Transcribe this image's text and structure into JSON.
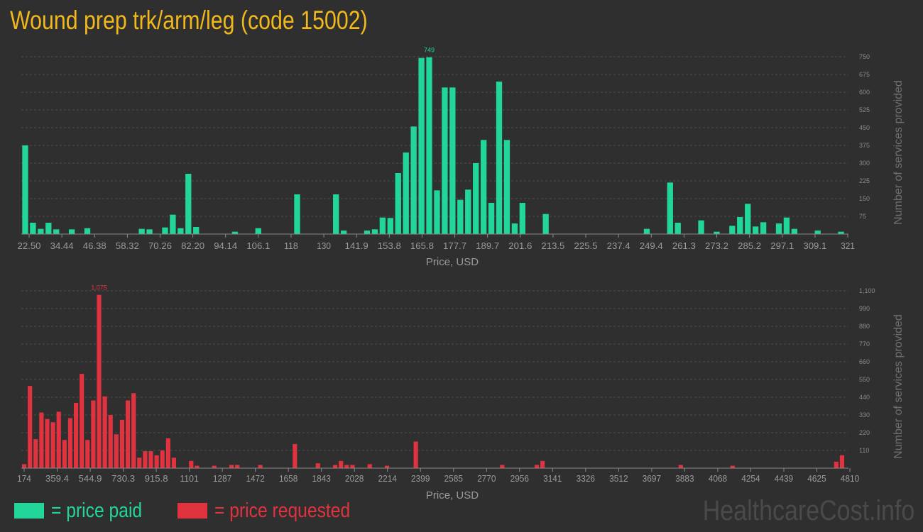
{
  "title": "Wound prep trk/arm/leg (code 15002)",
  "legend": {
    "paid": {
      "label": "= price paid",
      "color": "#22d69b"
    },
    "requested": {
      "label": "= price requested",
      "color": "#e0333f"
    }
  },
  "watermark": "HealthcareCost.info",
  "chart_data": [
    {
      "type": "bar",
      "name": "price paid",
      "color": "#22d69b",
      "xlabel": "Price, USD",
      "ylabel": "Number of services provided",
      "ylim": [
        0,
        750
      ],
      "yticks": [
        "75",
        "150",
        "225",
        "300",
        "375",
        "450",
        "525",
        "600",
        "675",
        "750"
      ],
      "xtick_labels": [
        "22.50",
        "34.44",
        "46.38",
        "58.32",
        "70.26",
        "82.20",
        "94.14",
        "106.1",
        "118",
        "130",
        "141.9",
        "153.8",
        "165.8",
        "177.7",
        "189.7",
        "201.6",
        "213.5",
        "225.5",
        "237.4",
        "249.4",
        "261.3",
        "273.2",
        "285.2",
        "297.1",
        "309.1",
        "321"
      ],
      "peak_label": "749",
      "grid": true,
      "values": [
        375,
        48,
        22,
        48,
        20,
        0,
        20,
        0,
        25,
        0,
        0,
        0,
        0,
        0,
        0,
        22,
        20,
        0,
        28,
        82,
        25,
        255,
        30,
        0,
        0,
        0,
        0,
        10,
        0,
        0,
        25,
        0,
        0,
        0,
        0,
        168,
        0,
        0,
        0,
        0,
        168,
        15,
        0,
        0,
        15,
        20,
        70,
        68,
        258,
        345,
        455,
        745,
        748,
        185,
        620,
        620,
        145,
        188,
        300,
        398,
        132,
        645,
        398,
        45,
        132,
        0,
        0,
        85,
        0,
        0,
        0,
        0,
        0,
        0,
        0,
        0,
        0,
        0,
        0,
        0,
        22,
        0,
        0,
        218,
        48,
        0,
        0,
        58,
        0,
        10,
        0,
        35,
        72,
        128,
        32,
        50,
        0,
        45,
        70,
        22,
        0,
        0,
        15,
        0,
        0,
        10
      ]
    },
    {
      "type": "bar",
      "name": "price requested",
      "color": "#e0333f",
      "xlabel": "Price, USD",
      "ylabel": "Number of services provided",
      "ylim": [
        0,
        1100
      ],
      "yticks": [
        "110",
        "220",
        "330",
        "440",
        "550",
        "660",
        "770",
        "880",
        "990",
        "1,100"
      ],
      "xtick_labels": [
        "174",
        "359.4",
        "544.9",
        "730.3",
        "915.8",
        "1101",
        "1287",
        "1472",
        "1658",
        "1843",
        "2028",
        "2214",
        "2399",
        "2585",
        "2770",
        "2956",
        "3141",
        "3326",
        "3512",
        "3697",
        "3883",
        "4068",
        "4254",
        "4439",
        "4625",
        "4810"
      ],
      "peak_label": "1,075",
      "grid": true,
      "values": [
        25,
        510,
        180,
        345,
        305,
        285,
        350,
        175,
        310,
        405,
        585,
        175,
        420,
        1075,
        445,
        330,
        210,
        300,
        420,
        465,
        65,
        105,
        105,
        80,
        110,
        185,
        65,
        0,
        0,
        45,
        15,
        0,
        0,
        15,
        0,
        0,
        20,
        20,
        0,
        0,
        0,
        20,
        0,
        0,
        0,
        0,
        0,
        150,
        0,
        0,
        0,
        30,
        0,
        0,
        20,
        45,
        20,
        20,
        0,
        0,
        25,
        0,
        0,
        15,
        0,
        0,
        0,
        0,
        165,
        0,
        0,
        0,
        0,
        0,
        0,
        0,
        0,
        0,
        0,
        0,
        0,
        0,
        0,
        20,
        0,
        0,
        0,
        0,
        0,
        20,
        45,
        0,
        0,
        0,
        0,
        0,
        0,
        0,
        0,
        0,
        0,
        0,
        0,
        0,
        0,
        0,
        0,
        0,
        0,
        0,
        0,
        0,
        0,
        0,
        20,
        0,
        0,
        0,
        0,
        0,
        0,
        0,
        0,
        15,
        0,
        0,
        0,
        0,
        0,
        0,
        0,
        0,
        0,
        0,
        0,
        0,
        0,
        0,
        0,
        0,
        0,
        40,
        80
      ]
    }
  ]
}
